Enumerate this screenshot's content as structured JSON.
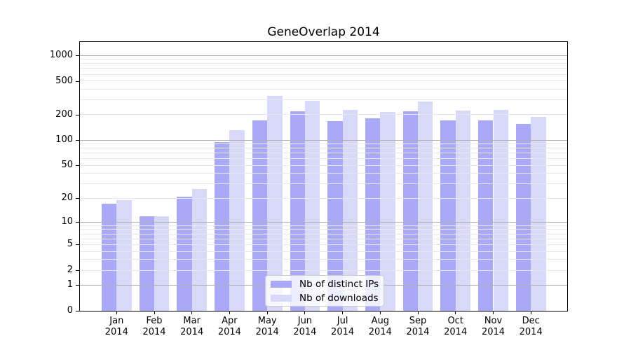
{
  "chart_data": {
    "type": "bar",
    "title": "GeneOverlap 2014",
    "categories": [
      "Jan",
      "Feb",
      "Mar",
      "Apr",
      "May",
      "Jun",
      "Jul",
      "Aug",
      "Sep",
      "Oct",
      "Nov",
      "Dec"
    ],
    "category_year": "2014",
    "series": [
      {
        "name": "Nb of distinct IPs",
        "color": "#a9a9f7",
        "values": [
          17,
          12,
          21,
          95,
          172,
          220,
          169,
          181,
          220,
          172,
          171,
          157
        ]
      },
      {
        "name": "Nb of downloads",
        "color": "#d8d8f8",
        "values": [
          19,
          12,
          26,
          130,
          333,
          290,
          227,
          215,
          288,
          223,
          230,
          189
        ]
      }
    ],
    "yscale": "log1p",
    "ylim": [
      0,
      1430
    ],
    "ytick_labels": [
      1000,
      500,
      200,
      100,
      50,
      20,
      10,
      5,
      2,
      1,
      0
    ],
    "major_gridlines": [
      1,
      10,
      100,
      1000
    ],
    "minor_gridlines": [
      2,
      3,
      4,
      5,
      6,
      7,
      8,
      9,
      20,
      30,
      40,
      50,
      60,
      70,
      80,
      90,
      200,
      300,
      400,
      500,
      600,
      700,
      800,
      900
    ],
    "grid": true,
    "legend_position": "inside lower center"
  },
  "colors": {
    "bar_distinct_ips": "#a9a9f7",
    "bar_downloads": "#d8d8f8",
    "grid_major": "#b0b0b0",
    "grid_minor": "#e8e8e8",
    "axis": "#000000",
    "background": "#ffffff",
    "legend_border": "#cccccc"
  }
}
